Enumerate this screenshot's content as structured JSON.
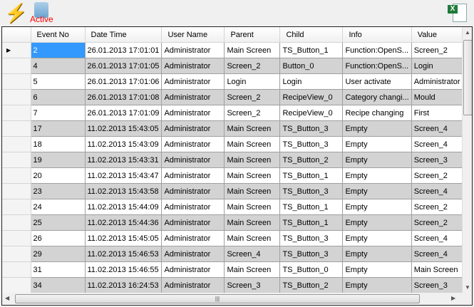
{
  "toolbar": {
    "active_label": "Active",
    "icons": [
      "lightning-icon",
      "active-icon",
      "excel-export-icon"
    ]
  },
  "grid": {
    "columns": [
      "Event No",
      "Date Time",
      "User Name",
      "Parent",
      "Child",
      "Info",
      "Value"
    ],
    "selected_row": 0,
    "rows": [
      [
        "2",
        "26.01.2013 17:01:01",
        "Administrator",
        "Main Screen",
        "TS_Button_1",
        "Function:OpenS...",
        "Screen_2"
      ],
      [
        "4",
        "26.01.2013 17:01:05",
        "Administrator",
        "Screen_2",
        "Button_0",
        "Function:OpenS...",
        "Login"
      ],
      [
        "5",
        "26.01.2013 17:01:06",
        "Administrator",
        "Login",
        "Login",
        "User activate",
        "Administrator"
      ],
      [
        "6",
        "26.01.2013 17:01:08",
        "Administrator",
        "Screen_2",
        "RecipeView_0",
        "Category changi...",
        "Mould"
      ],
      [
        "7",
        "26.01.2013 17:01:09",
        "Administrator",
        "Screen_2",
        "RecipeView_0",
        "Recipe changing",
        "First"
      ],
      [
        "17",
        "11.02.2013 15:43:05",
        "Administrator",
        "Main Screen",
        "TS_Button_3",
        "Empty",
        "Screen_4"
      ],
      [
        "18",
        "11.02.2013 15:43:09",
        "Administrator",
        "Main Screen",
        "TS_Button_3",
        "Empty",
        "Screen_4"
      ],
      [
        "19",
        "11.02.2013 15:43:31",
        "Administrator",
        "Main Screen",
        "TS_Button_2",
        "Empty",
        "Screen_3"
      ],
      [
        "20",
        "11.02.2013 15:43:47",
        "Administrator",
        "Main Screen",
        "TS_Button_1",
        "Empty",
        "Screen_2"
      ],
      [
        "23",
        "11.02.2013 15:43:58",
        "Administrator",
        "Main Screen",
        "TS_Button_3",
        "Empty",
        "Screen_4"
      ],
      [
        "24",
        "11.02.2013 15:44:09",
        "Administrator",
        "Main Screen",
        "TS_Button_1",
        "Empty",
        "Screen_2"
      ],
      [
        "25",
        "11.02.2013 15:44:36",
        "Administrator",
        "Main Screen",
        "TS_Button_1",
        "Empty",
        "Screen_2"
      ],
      [
        "26",
        "11.02.2013 15:45:05",
        "Administrator",
        "Main Screen",
        "TS_Button_3",
        "Empty",
        "Screen_4"
      ],
      [
        "29",
        "11.02.2013 15:46:53",
        "Administrator",
        "Screen_4",
        "TS_Button_3",
        "Empty",
        "Screen_4"
      ],
      [
        "31",
        "11.02.2013 15:46:55",
        "Administrator",
        "Main Screen",
        "TS_Button_0",
        "Empty",
        "Main Screen"
      ],
      [
        "34",
        "11.02.2013 16:24:53",
        "Administrator",
        "Screen_3",
        "TS_Button_2",
        "Empty",
        "Screen_3"
      ]
    ]
  },
  "colors": {
    "selection": "#3399ff",
    "alt_row": "#d3d3d3",
    "active_text": "#ff0000"
  }
}
